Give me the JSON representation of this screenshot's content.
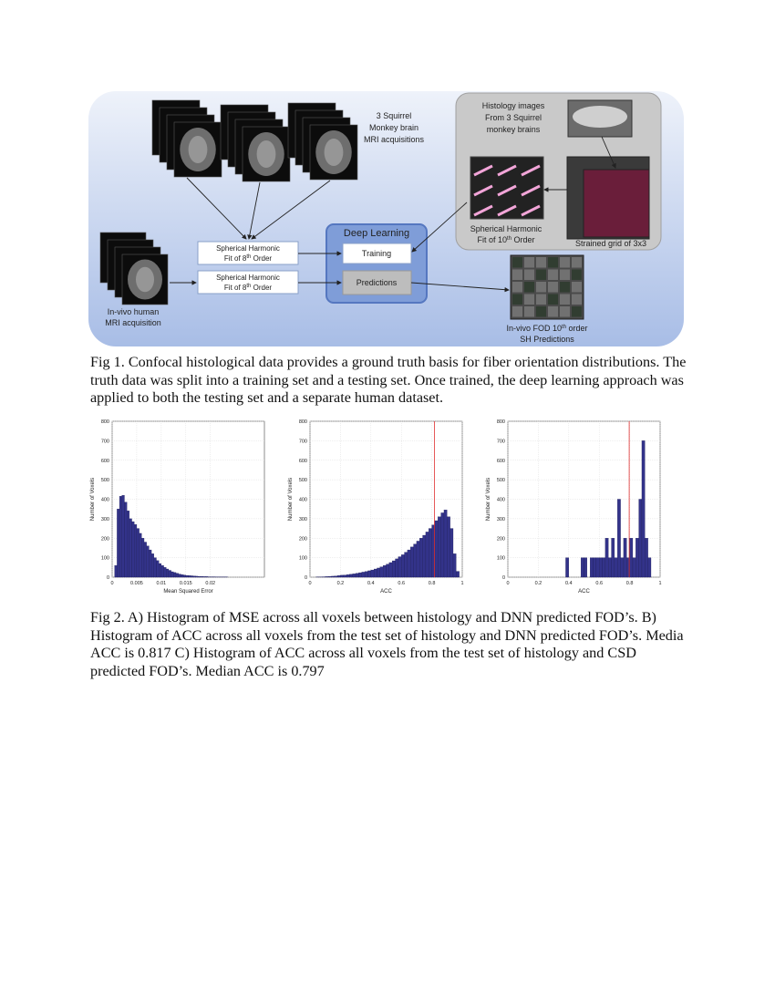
{
  "figure1": {
    "diagram": {
      "monkey_mri": [
        "3 Squirrel",
        "Monkey brain",
        "MRI acquisitions"
      ],
      "histology": [
        "Histology images",
        "From 3 Squirrel",
        "monkey brains"
      ],
      "sh_fit_train": [
        "Spherical Harmonic",
        [
          "Fit of 8",
          "th",
          " Order"
        ]
      ],
      "sh_fit_predict": [
        "Spherical Harmonic",
        [
          "Fit of 8",
          "th",
          " Order"
        ]
      ],
      "deep_learning": "Deep Learning",
      "training": "Training",
      "predictions": "Predictions",
      "sh_fit_10": [
        "Spherical Harmonic",
        [
          "Fit of 10",
          "th",
          " Order"
        ]
      ],
      "strained_grid": "Strained grid of 3x3",
      "human_mri": [
        "In-vivo human",
        "MRI acquisition"
      ],
      "fod_predictions": [
        [
          "In-vivo FOD 10",
          "th",
          " order"
        ],
        "SH Predictions"
      ]
    },
    "caption": "Fig 1. Confocal histological data provides a ground truth basis for fiber orientation distributions. The truth data was split into a training set and a testing set. Once trained, the deep learning approach was applied to both the testing set and a separate human dataset."
  },
  "chart_data": [
    {
      "type": "histogram",
      "xlabel": "Mean Squared Error",
      "ylabel": "Number of Voxels",
      "bins": [
        0,
        0.0005,
        0.001,
        0.0015,
        0.002,
        0.0025,
        0.003,
        0.0035,
        0.004,
        0.0045,
        0.005,
        0.0055,
        0.006,
        0.0065,
        0.007,
        0.0075,
        0.008,
        0.0085,
        0.009,
        0.0095,
        0.01,
        0.0105,
        0.011,
        0.0115,
        0.012,
        0.0125,
        0.013,
        0.0135,
        0.014,
        0.0145,
        0.015,
        0.0155,
        0.016,
        0.0165,
        0.017,
        0.0175,
        0.018,
        0.0185,
        0.019,
        0.0195,
        0.02,
        0.0205,
        0.021,
        0.0215,
        0.022,
        0.0225,
        0.023,
        0.0235,
        0.024,
        0.0245,
        0.025,
        0.0255,
        0.026,
        0.0265,
        0.027,
        0.0275,
        0.028,
        0.0285,
        0.029,
        0.0295,
        0.03
      ],
      "values": [
        0,
        60,
        350,
        415,
        420,
        385,
        340,
        300,
        285,
        270,
        250,
        225,
        200,
        180,
        160,
        140,
        120,
        100,
        85,
        70,
        60,
        50,
        42,
        35,
        28,
        24,
        20,
        16,
        13,
        11,
        9,
        8,
        7,
        6,
        5,
        4,
        4,
        3,
        3,
        2,
        2,
        2,
        1,
        1,
        1,
        1,
        1,
        0,
        0,
        0,
        0,
        0,
        0,
        0,
        0,
        0,
        0,
        0,
        0,
        0
      ],
      "color": "#33338a",
      "xlim": [
        0,
        0.031
      ],
      "xticks": [
        0,
        0.005,
        0.01,
        0.015,
        0.02
      ],
      "ylim": [
        0,
        800
      ],
      "yticks": [
        0,
        100,
        200,
        300,
        400,
        500,
        600,
        700,
        800
      ],
      "grid": true
    },
    {
      "type": "histogram",
      "xlabel": "ACC",
      "ylabel": "Number of Voxels",
      "bins": [
        0,
        0.02,
        0.04,
        0.06,
        0.08,
        0.1,
        0.12,
        0.14,
        0.16,
        0.18,
        0.2,
        0.22,
        0.24,
        0.26,
        0.28,
        0.3,
        0.32,
        0.34,
        0.36,
        0.38,
        0.4,
        0.42,
        0.44,
        0.46,
        0.48,
        0.5,
        0.52,
        0.54,
        0.56,
        0.58,
        0.6,
        0.62,
        0.64,
        0.66,
        0.68,
        0.7,
        0.72,
        0.74,
        0.76,
        0.78,
        0.8,
        0.82,
        0.84,
        0.86,
        0.88,
        0.9,
        0.92,
        0.94,
        0.96,
        0.98,
        1
      ],
      "values": [
        0,
        0,
        1,
        1,
        2,
        3,
        4,
        5,
        6,
        8,
        10,
        11,
        13,
        15,
        17,
        20,
        23,
        26,
        29,
        33,
        37,
        42,
        47,
        53,
        60,
        67,
        75,
        84,
        94,
        105,
        115,
        128,
        140,
        155,
        170,
        185,
        200,
        215,
        232,
        250,
        268,
        290,
        310,
        330,
        345,
        310,
        250,
        120,
        30,
        0
      ],
      "color": "#33338a",
      "reference_line": 0.817,
      "line_color": "#e03030",
      "xlim": [
        0,
        1
      ],
      "xticks": [
        0,
        0.2,
        0.4,
        0.6,
        0.8,
        1
      ],
      "ylim": [
        0,
        800
      ],
      "yticks": [
        0,
        100,
        200,
        300,
        400,
        500,
        600,
        700,
        800
      ],
      "grid": true
    },
    {
      "type": "histogram",
      "xlabel": "ACC",
      "ylabel": "Number of Voxels",
      "bins": [
        0,
        0.02,
        0.04,
        0.06,
        0.08,
        0.1,
        0.12,
        0.14,
        0.16,
        0.18,
        0.2,
        0.22,
        0.24,
        0.26,
        0.28,
        0.3,
        0.32,
        0.34,
        0.36,
        0.38,
        0.4,
        0.42,
        0.44,
        0.46,
        0.48,
        0.5,
        0.52,
        0.54,
        0.56,
        0.58,
        0.6,
        0.62,
        0.64,
        0.66,
        0.68,
        0.7,
        0.72,
        0.74,
        0.76,
        0.78,
        0.8,
        0.82,
        0.84,
        0.86,
        0.88,
        0.9,
        0.92,
        0.94,
        0.96,
        0.98,
        1
      ],
      "values": [
        0,
        0,
        0,
        0,
        0,
        0,
        0,
        0,
        0,
        0,
        0,
        0,
        0,
        0,
        0,
        0,
        0,
        0,
        0,
        100,
        0,
        0,
        0,
        0,
        100,
        100,
        0,
        100,
        100,
        100,
        100,
        100,
        200,
        100,
        200,
        100,
        400,
        100,
        200,
        100,
        200,
        100,
        200,
        400,
        700,
        200,
        100,
        0,
        0,
        0
      ],
      "color": "#33338a",
      "reference_line": 0.797,
      "line_color": "#e03030",
      "xlim": [
        0,
        1
      ],
      "xticks": [
        0,
        0.2,
        0.4,
        0.6,
        0.8,
        1
      ],
      "ylim": [
        0,
        800
      ],
      "yticks": [
        0,
        100,
        200,
        300,
        400,
        500,
        600,
        700,
        800
      ],
      "grid": true
    }
  ],
  "figure2": {
    "caption": "Fig 2. A) Histogram of MSE across all voxels between histology and DNN predicted FOD’s. B) Histogram of ACC across all voxels from the test set of histology and DNN predicted FOD’s. Media ACC is 0.817 C) Histogram of ACC across all voxels from the test set of histology and CSD predicted FOD’s. Median ACC is 0.797"
  }
}
